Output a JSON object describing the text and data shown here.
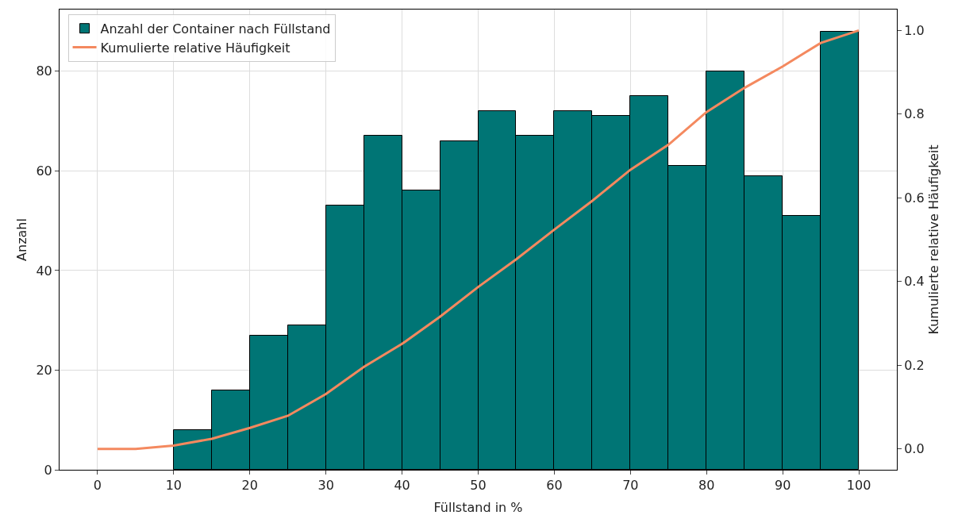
{
  "chart_data": {
    "type": "histogram",
    "xlabel": "Füllstand in %",
    "ylabel": "Anzahl",
    "y2label": "Kumulierte relative Häufigkeit",
    "bins": [
      10,
      15,
      20,
      25,
      30,
      35,
      40,
      45,
      50,
      55,
      60,
      65,
      70,
      75,
      80,
      85,
      90,
      95,
      100
    ],
    "series": [
      {
        "name": "Anzahl der Container nach Füllstand",
        "color": "#007575",
        "values": [
          8,
          16,
          27,
          29,
          53,
          67,
          56,
          66,
          72,
          67,
          72,
          71,
          75,
          61,
          80,
          59,
          51,
          88
        ]
      },
      {
        "type": "line",
        "name": "Kumulierte relative Häufigkeit",
        "color": "#f4895f",
        "axis": "y2",
        "x": [
          0,
          5,
          10,
          15,
          20,
          25,
          30,
          35,
          40,
          45,
          50,
          55,
          60,
          65,
          70,
          75,
          80,
          85,
          90,
          95,
          100
        ],
        "values": [
          0,
          0,
          0.008,
          0.024,
          0.05,
          0.079,
          0.131,
          0.196,
          0.251,
          0.316,
          0.387,
          0.453,
          0.524,
          0.593,
          0.667,
          0.727,
          0.805,
          0.863,
          0.914,
          0.97,
          1.0
        ]
      }
    ],
    "xlim": [
      -5,
      105
    ],
    "xticks": [
      0,
      10,
      20,
      30,
      40,
      50,
      60,
      70,
      80,
      90,
      100
    ],
    "ylim": [
      0,
      92.4
    ],
    "yticks": [
      0,
      20,
      40,
      60,
      80
    ],
    "y2lim": [
      -0.05,
      1.05
    ],
    "y2ticks": [
      {
        "value": 0,
        "label": "0.0"
      },
      {
        "value": 0.2,
        "label": "0.2"
      },
      {
        "value": 0.4,
        "label": "0.4"
      },
      {
        "value": 0.6,
        "label": "0.6"
      },
      {
        "value": 0.8,
        "label": "0.8"
      },
      {
        "value": 1,
        "label": "1.0"
      }
    ],
    "grid": true,
    "legend": "top left",
    "marker": "none",
    "line_style": "solid"
  }
}
